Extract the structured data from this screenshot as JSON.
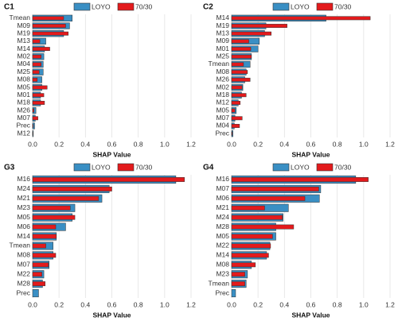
{
  "chart_data": [
    {
      "type": "barh",
      "title": "C1",
      "x_label": "SHAP Value",
      "categories": [
        "Tmean",
        "M09",
        "M19",
        "M13",
        "M14",
        "M02",
        "M04",
        "M25",
        "M08",
        "M05",
        "M01",
        "M18",
        "M26",
        "M07",
        "Prec",
        "M12"
      ],
      "series": [
        {
          "name": "LOYO",
          "color": "#3a8fc4",
          "values": [
            0.3,
            0.28,
            0.235,
            0.1,
            0.09,
            0.085,
            0.08,
            0.08,
            0.07,
            0.07,
            0.06,
            0.06,
            0.025,
            0.02,
            0.015,
            0.005
          ]
        },
        {
          "name": "70/30",
          "color": "#e31a1c",
          "values": [
            0.235,
            0.25,
            0.27,
            0.055,
            0.13,
            0.065,
            0.065,
            0.05,
            0.035,
            0.11,
            0.085,
            0.09,
            0.01,
            0.04,
            0.005,
            0.003
          ]
        }
      ],
      "xlim": [
        0,
        1.2
      ],
      "xticks": [
        {
          "value": 0,
          "label": "0.0"
        },
        0.2,
        0.4,
        0.6,
        0.8,
        {
          "value": 1,
          "label": "1.0"
        },
        1.2
      ],
      "grid": true
    },
    {
      "type": "barh",
      "title": "C2",
      "x_label": "SHAP Value",
      "categories": [
        "M14",
        "M19",
        "M13",
        "M09",
        "M01",
        "M25",
        "Tmean",
        "M08",
        "M26",
        "M02",
        "M18",
        "M12",
        "M05",
        "M07",
        "M04",
        "Prec"
      ],
      "series": [
        {
          "name": "LOYO",
          "color": "#3a8fc4",
          "values": [
            0.715,
            0.26,
            0.25,
            0.21,
            0.2,
            0.15,
            0.14,
            0.11,
            0.1,
            0.085,
            0.075,
            0.05,
            0.035,
            0.025,
            0.02,
            0.01
          ]
        },
        {
          "name": "70/30",
          "color": "#e31a1c",
          "values": [
            1.05,
            0.42,
            0.3,
            0.13,
            0.145,
            0.15,
            0.09,
            0.12,
            0.14,
            0.08,
            0.11,
            0.065,
            0.025,
            0.08,
            0.06,
            0.005
          ]
        }
      ],
      "xlim": [
        0,
        1.2
      ],
      "xticks": [
        {
          "value": 0,
          "label": "0.0"
        },
        0.2,
        0.4,
        0.6,
        0.8,
        {
          "value": 1,
          "label": "1.0"
        },
        1.2
      ],
      "grid": true
    },
    {
      "type": "barh",
      "title": "G3",
      "x_label": "SHAP Value",
      "categories": [
        "M16",
        "M24",
        "M21",
        "M23",
        "M05",
        "M06",
        "M14",
        "Tmean",
        "M08",
        "M07",
        "M22",
        "M28",
        "Prec"
      ],
      "series": [
        {
          "name": "LOYO",
          "color": "#3a8fc4",
          "values": [
            1.085,
            0.58,
            0.525,
            0.32,
            0.3,
            0.25,
            0.18,
            0.155,
            0.155,
            0.125,
            0.085,
            0.075,
            0.045
          ]
        },
        {
          "name": "70/30",
          "color": "#e31a1c",
          "values": [
            1.15,
            0.6,
            0.5,
            0.285,
            0.32,
            0.175,
            0.18,
            0.1,
            0.175,
            0.12,
            0.07,
            0.095,
            0
          ]
        }
      ],
      "xlim": [
        0,
        1.2
      ],
      "xticks": [
        {
          "value": 0,
          "label": "0.0"
        },
        0.2,
        0.4,
        0.6,
        0.8,
        {
          "value": 1,
          "label": "1.0"
        },
        1.2
      ],
      "grid": true
    },
    {
      "type": "barh",
      "title": "G4",
      "x_label": "SHAP Value",
      "categories": [
        "M16",
        "M07",
        "M06",
        "M21",
        "M24",
        "M28",
        "M05",
        "M22",
        "M14",
        "M08",
        "M23",
        "Tmean",
        "Prec"
      ],
      "series": [
        {
          "name": "LOYO",
          "color": "#3a8fc4",
          "values": [
            0.94,
            0.675,
            0.665,
            0.43,
            0.39,
            0.335,
            0.335,
            0.29,
            0.265,
            0.15,
            0.12,
            0.11,
            0.03
          ]
        },
        {
          "name": "70/30",
          "color": "#e31a1c",
          "values": [
            1.035,
            0.66,
            0.555,
            0.25,
            0.385,
            0.47,
            0.31,
            0.295,
            0.28,
            0.18,
            0.1,
            0.1,
            0
          ]
        }
      ],
      "xlim": [
        0,
        1.2
      ],
      "xticks": [
        {
          "value": 0,
          "label": "0.0"
        },
        0.2,
        0.4,
        0.6,
        0.8,
        {
          "value": 1,
          "label": "1.0"
        },
        1.2
      ],
      "grid": true
    }
  ]
}
